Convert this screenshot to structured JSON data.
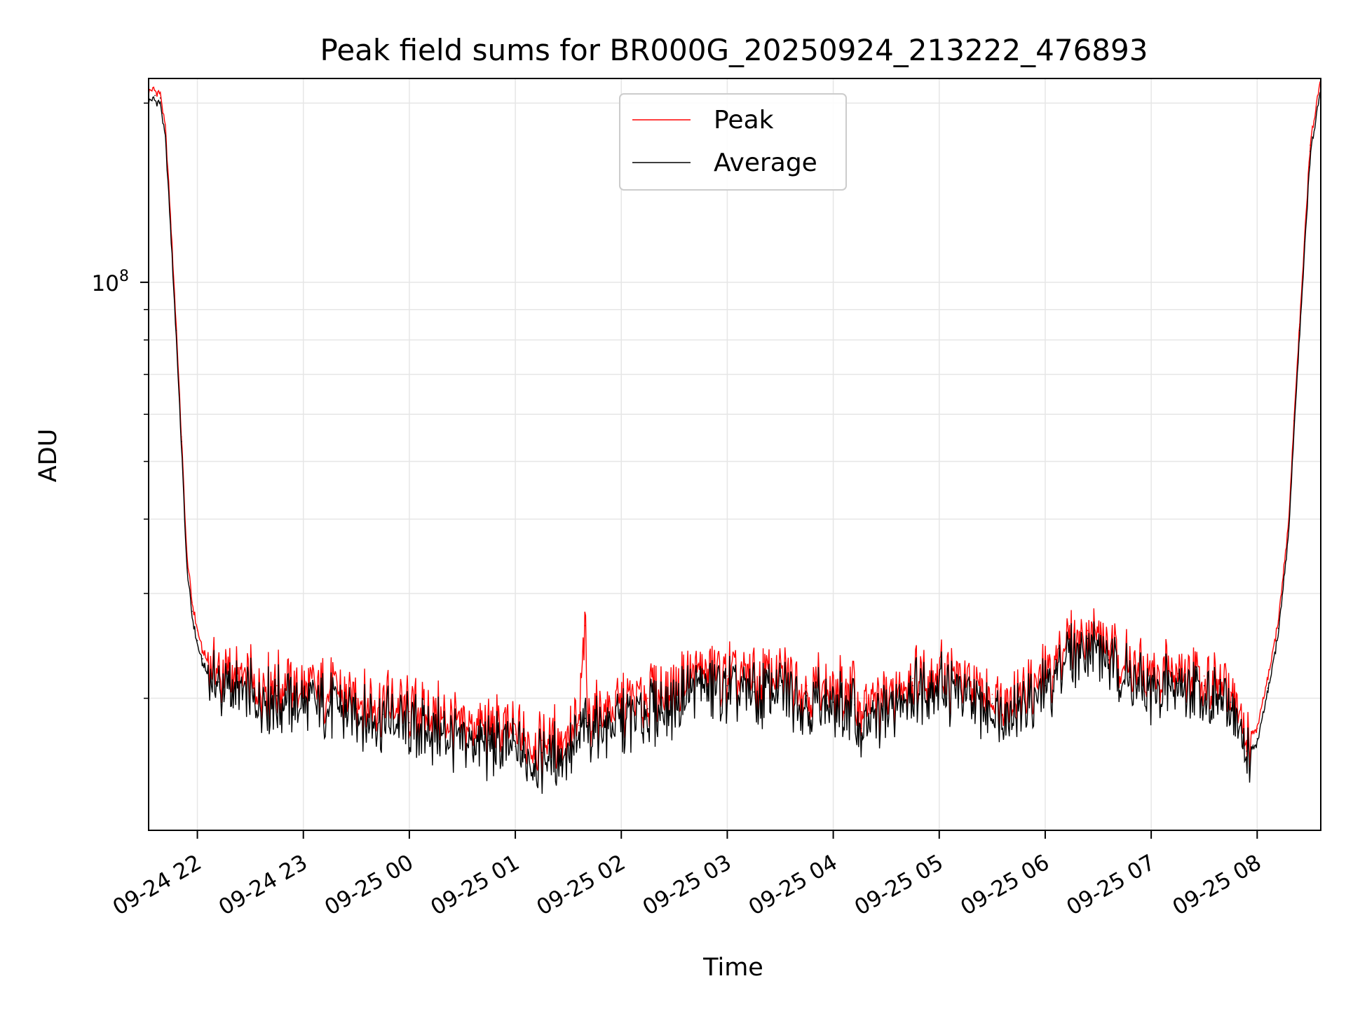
{
  "chart_data": {
    "type": "line",
    "title": "Peak field sums for BR000G_20250924_213222_476893",
    "xlabel": "Time",
    "ylabel": "ADU",
    "yscale": "log",
    "ylim": [
      12000000,
      220000000
    ],
    "y_major_ticks": [
      {
        "value": 100000000,
        "base": "10",
        "exp": "8"
      }
    ],
    "y_minor_ticks": [
      20000000,
      30000000,
      40000000,
      50000000,
      60000000,
      70000000,
      80000000,
      90000000,
      200000000
    ],
    "x_range_hours": [
      21.54,
      32.6
    ],
    "x_ticks": [
      {
        "label": "09-24 22",
        "hour": 22
      },
      {
        "label": "09-24 23",
        "hour": 23
      },
      {
        "label": "09-25 00",
        "hour": 24
      },
      {
        "label": "09-25 01",
        "hour": 25
      },
      {
        "label": "09-25 02",
        "hour": 26
      },
      {
        "label": "09-25 03",
        "hour": 27
      },
      {
        "label": "09-25 04",
        "hour": 28
      },
      {
        "label": "09-25 05",
        "hour": 29
      },
      {
        "label": "09-25 06",
        "hour": 30
      },
      {
        "label": "09-25 07",
        "hour": 31
      },
      {
        "label": "09-25 08",
        "hour": 32
      }
    ],
    "grid": true,
    "legend_position": "upper-center",
    "series": [
      {
        "name": "Peak",
        "color": "#ff0000",
        "x": [
          21.54,
          21.6,
          21.65,
          21.7,
          21.75,
          21.8,
          21.85,
          21.9,
          21.95,
          22.0,
          22.05,
          22.1,
          22.2,
          22.3,
          22.5,
          22.75,
          23.0,
          23.25,
          23.5,
          23.75,
          24.0,
          24.25,
          24.5,
          24.75,
          25.0,
          25.25,
          25.5,
          25.6,
          25.66,
          25.68,
          25.7,
          25.8,
          26.0,
          26.25,
          26.5,
          26.75,
          27.0,
          27.25,
          27.5,
          27.75,
          28.0,
          28.2,
          28.26,
          28.5,
          28.75,
          29.0,
          29.25,
          29.5,
          29.75,
          30.0,
          30.25,
          30.4,
          30.6,
          30.8,
          31.0,
          31.25,
          31.5,
          31.75,
          31.9,
          32.0,
          32.1,
          32.2,
          32.3,
          32.35,
          32.4,
          32.45,
          32.5,
          32.6
        ],
        "values": [
          210000000,
          210000000,
          208000000,
          180000000,
          125000000,
          85000000,
          55000000,
          35000000,
          29000000,
          26000000,
          24000000,
          23000000,
          22000000,
          21800000,
          21200000,
          21000000,
          20800000,
          20500000,
          20000000,
          19600000,
          19000000,
          18600000,
          18200000,
          17800000,
          17400000,
          17000000,
          17500000,
          18000000,
          26500000,
          19000000,
          19200000,
          18800000,
          19400000,
          20000000,
          20800000,
          22300000,
          21800000,
          21300000,
          21800000,
          21000000,
          20500000,
          20500000,
          19000000,
          19800000,
          21600000,
          22000000,
          21000000,
          20300000,
          20500000,
          21800000,
          25000000,
          26000000,
          24000000,
          22500000,
          21500000,
          22000000,
          21800000,
          20500000,
          17000000,
          17800000,
          21500000,
          27000000,
          40000000,
          60000000,
          85000000,
          120000000,
          170000000,
          220000000
        ]
      },
      {
        "name": "Average",
        "color": "#000000",
        "x": [
          21.54,
          21.6,
          21.65,
          21.7,
          21.75,
          21.8,
          21.85,
          21.9,
          21.95,
          22.0,
          22.05,
          22.1,
          22.2,
          22.3,
          22.5,
          22.75,
          23.0,
          23.25,
          23.5,
          23.75,
          24.0,
          24.25,
          24.5,
          24.75,
          25.0,
          25.25,
          25.5,
          25.6,
          25.66,
          25.68,
          25.7,
          25.8,
          26.0,
          26.25,
          26.5,
          26.75,
          27.0,
          27.25,
          27.5,
          27.75,
          28.0,
          28.2,
          28.26,
          28.5,
          28.75,
          29.0,
          29.25,
          29.5,
          29.75,
          30.0,
          30.25,
          30.4,
          30.6,
          30.8,
          31.0,
          31.25,
          31.5,
          31.75,
          31.9,
          32.0,
          32.1,
          32.2,
          32.3,
          32.35,
          32.4,
          32.45,
          32.5,
          32.6
        ],
        "values": [
          206000000,
          206000000,
          204000000,
          176000000,
          122000000,
          83000000,
          54000000,
          34000000,
          28000000,
          25000000,
          23300000,
          22300000,
          21300000,
          21000000,
          20500000,
          20200000,
          20000000,
          19700000,
          19200000,
          18800000,
          18200000,
          17800000,
          17400000,
          17000000,
          16600000,
          16200000,
          16700000,
          17200000,
          18500000,
          18200000,
          18400000,
          18000000,
          18600000,
          19200000,
          20000000,
          21500000,
          21000000,
          20500000,
          21000000,
          20200000,
          19700000,
          19500000,
          17800000,
          19200000,
          21000000,
          21400000,
          20300000,
          19600000,
          19800000,
          21000000,
          24200000,
          25200000,
          23200000,
          21700000,
          20700000,
          21200000,
          21000000,
          19700000,
          16300000,
          17100000,
          20800000,
          26200000,
          39000000,
          58500000,
          83000000,
          117000000,
          166000000,
          215000000
        ]
      }
    ]
  }
}
